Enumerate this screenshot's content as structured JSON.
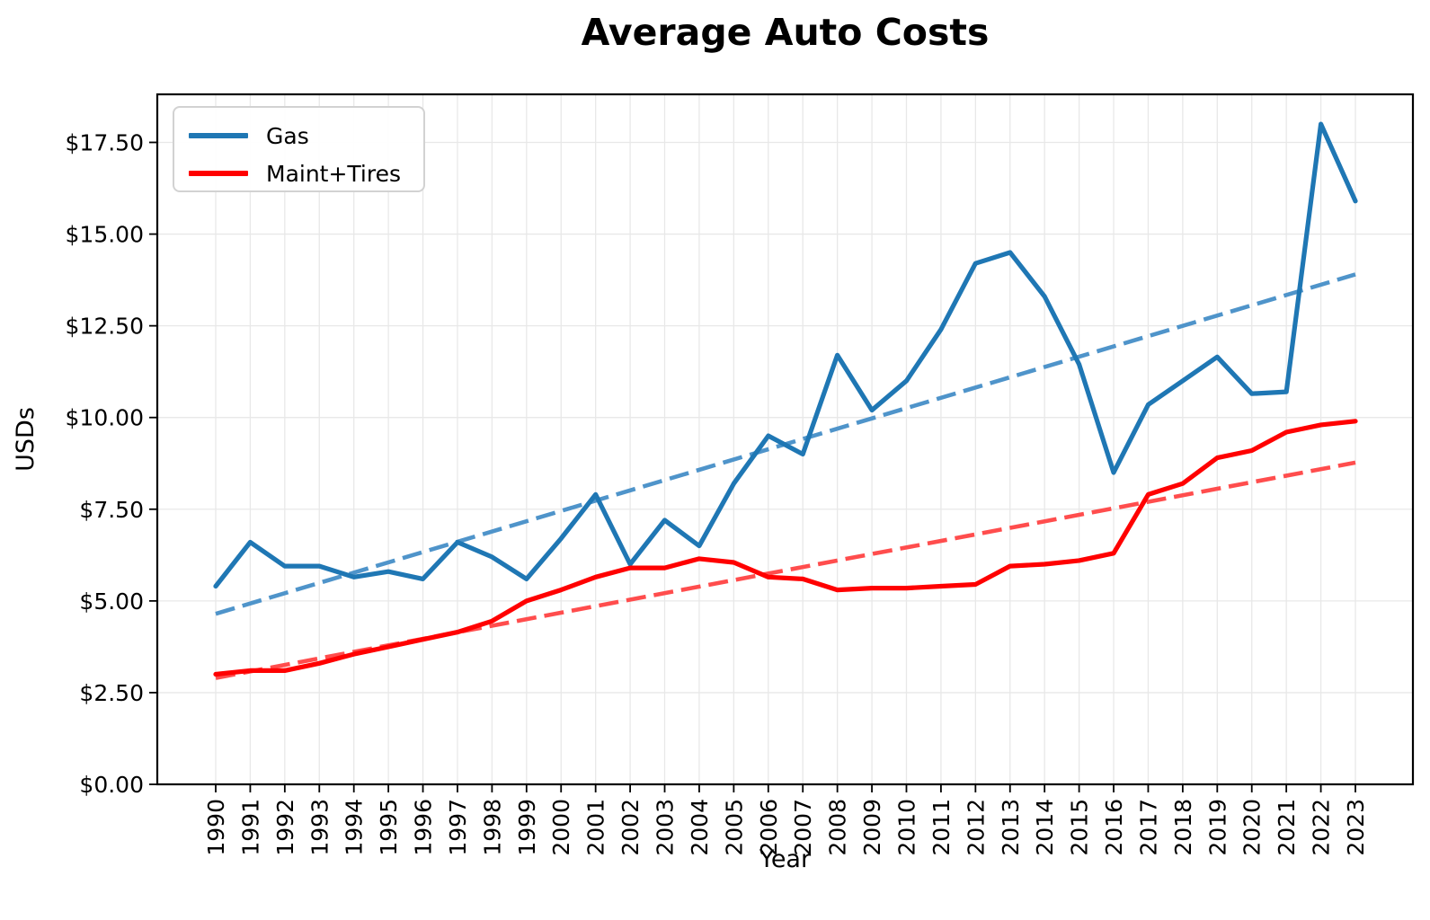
{
  "title": "Average Auto Costs",
  "axes": {
    "xlabel": "Year",
    "ylabel": "USDs"
  },
  "legend": {
    "position": "upper left",
    "items": [
      {
        "label": "Gas",
        "color": "#1f77b4"
      },
      {
        "label": "Maint+Tires",
        "color": "#ff0000"
      }
    ]
  },
  "chart_data": {
    "type": "line",
    "title": "Average Auto Costs",
    "xlabel": "Year",
    "ylabel": "USDs",
    "grid": true,
    "legend_position": "upper left",
    "background": "#ffffff",
    "grid_color": "#e8e8e8",
    "spine_color": "#000000",
    "x": [
      1990,
      1991,
      1992,
      1993,
      1994,
      1995,
      1996,
      1997,
      1998,
      1999,
      2000,
      2001,
      2002,
      2003,
      2004,
      2005,
      2006,
      2007,
      2008,
      2009,
      2010,
      2011,
      2012,
      2013,
      2014,
      2015,
      2016,
      2017,
      2018,
      2019,
      2020,
      2021,
      2022,
      2023
    ],
    "series": [
      {
        "name": "Gas",
        "style": "solid",
        "color": "#1f77b4",
        "values": [
          5.4,
          6.6,
          5.95,
          5.95,
          5.65,
          5.8,
          5.6,
          6.6,
          6.2,
          5.6,
          6.7,
          7.9,
          6.0,
          7.2,
          6.5,
          8.2,
          9.5,
          9.0,
          11.7,
          10.2,
          11.0,
          12.4,
          14.2,
          14.5,
          13.3,
          11.45,
          8.5,
          10.35,
          11.0,
          11.65,
          10.65,
          10.7,
          18.0,
          15.9
        ]
      },
      {
        "name": "Maint+Tires",
        "style": "solid",
        "color": "#ff0000",
        "values": [
          3.0,
          3.1,
          3.1,
          3.3,
          3.55,
          3.75,
          3.95,
          4.15,
          4.45,
          5.0,
          5.3,
          5.65,
          5.9,
          5.9,
          6.15,
          6.05,
          5.65,
          5.6,
          5.3,
          5.35,
          5.35,
          5.4,
          5.45,
          5.95,
          6.0,
          6.1,
          6.3,
          7.9,
          8.2,
          8.9,
          9.1,
          9.6,
          9.8,
          9.9
        ]
      },
      {
        "name": "Gas trend",
        "style": "dashed",
        "color": "#4f94ca",
        "endpoints": [
          4.65,
          13.9
        ]
      },
      {
        "name": "Maint+Tires trend",
        "style": "dashed",
        "color": "#ff4d4d",
        "endpoints": [
          2.9,
          8.77
        ]
      }
    ],
    "ylim": [
      0,
      18.81
    ],
    "yticks": {
      "values": [
        0,
        2.5,
        5,
        7.5,
        10,
        12.5,
        15,
        17.5
      ],
      "labels": [
        "$0.00",
        "$2.50",
        "$5.00",
        "$7.50",
        "$10.00",
        "$12.50",
        "$15.00",
        "$17.50"
      ]
    }
  }
}
